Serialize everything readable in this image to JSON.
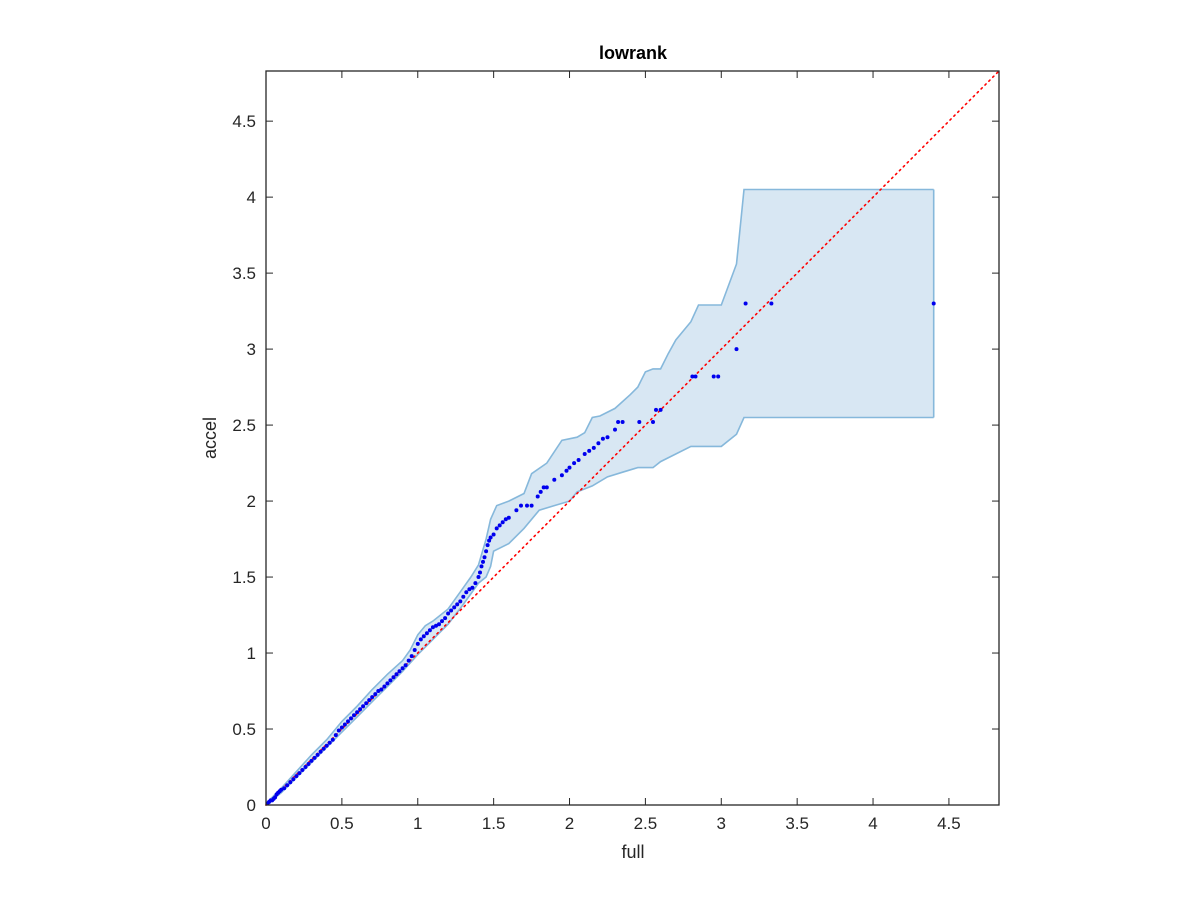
{
  "chart_data": {
    "type": "scatter",
    "title": "lowrank",
    "xlabel": "full",
    "ylabel": "accel",
    "xlim": [
      0,
      4.83
    ],
    "ylim": [
      0,
      4.83
    ],
    "xticks": [
      0,
      0.5,
      1,
      1.5,
      2,
      2.5,
      3,
      3.5,
      4,
      4.5
    ],
    "yticks": [
      0,
      0.5,
      1,
      1.5,
      2,
      2.5,
      3,
      3.5,
      4,
      4.5
    ],
    "xtick_labels": [
      "0",
      "0.5",
      "1",
      "1.5",
      "2",
      "2.5",
      "3",
      "3.5",
      "4",
      "4.5"
    ],
    "ytick_labels": [
      "0",
      "0.5",
      "1",
      "1.5",
      "2",
      "2.5",
      "3",
      "3.5",
      "4",
      "4.5"
    ],
    "grid": false,
    "colors": {
      "points": "#0000ee",
      "band_fill": "#d8e7f3",
      "band_edge": "#86b8db",
      "reference_line": "#ff0000",
      "axis": "#262626"
    },
    "reference_line": {
      "style": "dotted",
      "x": [
        0,
        4.83
      ],
      "y": [
        0,
        4.83
      ]
    },
    "band": {
      "upper": [
        [
          0,
          0.01
        ],
        [
          0.1,
          0.11
        ],
        [
          0.2,
          0.22
        ],
        [
          0.3,
          0.33
        ],
        [
          0.4,
          0.43
        ],
        [
          0.5,
          0.55
        ],
        [
          0.6,
          0.65
        ],
        [
          0.7,
          0.76
        ],
        [
          0.8,
          0.86
        ],
        [
          0.9,
          0.95
        ],
        [
          0.95,
          1.02
        ],
        [
          1.0,
          1.12
        ],
        [
          1.05,
          1.18
        ],
        [
          1.1,
          1.21
        ],
        [
          1.2,
          1.29
        ],
        [
          1.3,
          1.43
        ],
        [
          1.35,
          1.5
        ],
        [
          1.4,
          1.58
        ],
        [
          1.45,
          1.75
        ],
        [
          1.48,
          1.88
        ],
        [
          1.52,
          1.97
        ],
        [
          1.6,
          2.0
        ],
        [
          1.7,
          2.05
        ],
        [
          1.75,
          2.18
        ],
        [
          1.85,
          2.25
        ],
        [
          1.95,
          2.4
        ],
        [
          2.05,
          2.42
        ],
        [
          2.1,
          2.45
        ],
        [
          2.15,
          2.55
        ],
        [
          2.2,
          2.56
        ],
        [
          2.3,
          2.61
        ],
        [
          2.4,
          2.7
        ],
        [
          2.45,
          2.75
        ],
        [
          2.5,
          2.85
        ],
        [
          2.55,
          2.87
        ],
        [
          2.6,
          2.87
        ],
        [
          2.65,
          2.97
        ],
        [
          2.7,
          3.06
        ],
        [
          2.8,
          3.18
        ],
        [
          2.85,
          3.29
        ],
        [
          3.0,
          3.29
        ],
        [
          3.1,
          3.56
        ],
        [
          3.15,
          4.05
        ],
        [
          4.4,
          4.05
        ]
      ],
      "lower": [
        [
          0,
          0
        ],
        [
          0.1,
          0.08
        ],
        [
          0.2,
          0.18
        ],
        [
          0.3,
          0.28
        ],
        [
          0.4,
          0.38
        ],
        [
          0.5,
          0.48
        ],
        [
          0.6,
          0.58
        ],
        [
          0.7,
          0.68
        ],
        [
          0.8,
          0.78
        ],
        [
          0.9,
          0.88
        ],
        [
          1.0,
          0.99
        ],
        [
          1.1,
          1.09
        ],
        [
          1.2,
          1.19
        ],
        [
          1.3,
          1.32
        ],
        [
          1.4,
          1.46
        ],
        [
          1.45,
          1.5
        ],
        [
          1.48,
          1.57
        ],
        [
          1.5,
          1.67
        ],
        [
          1.6,
          1.72
        ],
        [
          1.7,
          1.82
        ],
        [
          1.8,
          1.94
        ],
        [
          1.9,
          1.97
        ],
        [
          2.0,
          2.0
        ],
        [
          2.05,
          2.06
        ],
        [
          2.15,
          2.1
        ],
        [
          2.25,
          2.16
        ],
        [
          2.35,
          2.19
        ],
        [
          2.45,
          2.22
        ],
        [
          2.55,
          2.22
        ],
        [
          2.6,
          2.26
        ],
        [
          2.8,
          2.36
        ],
        [
          3.0,
          2.36
        ],
        [
          3.1,
          2.44
        ],
        [
          3.15,
          2.55
        ],
        [
          4.4,
          2.55
        ]
      ]
    },
    "points": [
      [
        0.01,
        0.01
      ],
      [
        0.02,
        0.02
      ],
      [
        0.03,
        0.03
      ],
      [
        0.04,
        0.03
      ],
      [
        0.05,
        0.04
      ],
      [
        0.06,
        0.05
      ],
      [
        0.07,
        0.07
      ],
      [
        0.08,
        0.08
      ],
      [
        0.09,
        0.09
      ],
      [
        0.1,
        0.1
      ],
      [
        0.12,
        0.11
      ],
      [
        0.14,
        0.13
      ],
      [
        0.16,
        0.15
      ],
      [
        0.18,
        0.17
      ],
      [
        0.2,
        0.19
      ],
      [
        0.22,
        0.21
      ],
      [
        0.24,
        0.23
      ],
      [
        0.26,
        0.25
      ],
      [
        0.28,
        0.27
      ],
      [
        0.3,
        0.29
      ],
      [
        0.32,
        0.31
      ],
      [
        0.34,
        0.33
      ],
      [
        0.36,
        0.35
      ],
      [
        0.38,
        0.37
      ],
      [
        0.4,
        0.39
      ],
      [
        0.42,
        0.41
      ],
      [
        0.44,
        0.43
      ],
      [
        0.46,
        0.46
      ],
      [
        0.48,
        0.49
      ],
      [
        0.5,
        0.51
      ],
      [
        0.52,
        0.53
      ],
      [
        0.54,
        0.55
      ],
      [
        0.56,
        0.57
      ],
      [
        0.58,
        0.59
      ],
      [
        0.6,
        0.61
      ],
      [
        0.62,
        0.63
      ],
      [
        0.64,
        0.65
      ],
      [
        0.66,
        0.67
      ],
      [
        0.68,
        0.69
      ],
      [
        0.7,
        0.71
      ],
      [
        0.72,
        0.73
      ],
      [
        0.74,
        0.75
      ],
      [
        0.76,
        0.76
      ],
      [
        0.78,
        0.78
      ],
      [
        0.8,
        0.8
      ],
      [
        0.82,
        0.82
      ],
      [
        0.84,
        0.84
      ],
      [
        0.86,
        0.86
      ],
      [
        0.88,
        0.88
      ],
      [
        0.9,
        0.9
      ],
      [
        0.92,
        0.92
      ],
      [
        0.94,
        0.95
      ],
      [
        0.96,
        0.98
      ],
      [
        0.98,
        1.02
      ],
      [
        1.0,
        1.06
      ],
      [
        1.02,
        1.09
      ],
      [
        1.04,
        1.11
      ],
      [
        1.06,
        1.13
      ],
      [
        1.08,
        1.15
      ],
      [
        1.1,
        1.17
      ],
      [
        1.12,
        1.18
      ],
      [
        1.14,
        1.19
      ],
      [
        1.16,
        1.21
      ],
      [
        1.18,
        1.23
      ],
      [
        1.2,
        1.26
      ],
      [
        1.22,
        1.28
      ],
      [
        1.24,
        1.3
      ],
      [
        1.26,
        1.32
      ],
      [
        1.28,
        1.34
      ],
      [
        1.3,
        1.37
      ],
      [
        1.32,
        1.4
      ],
      [
        1.34,
        1.42
      ],
      [
        1.36,
        1.43
      ],
      [
        1.38,
        1.46
      ],
      [
        1.4,
        1.5
      ],
      [
        1.41,
        1.53
      ],
      [
        1.42,
        1.57
      ],
      [
        1.43,
        1.6
      ],
      [
        1.44,
        1.63
      ],
      [
        1.45,
        1.67
      ],
      [
        1.46,
        1.71
      ],
      [
        1.47,
        1.74
      ],
      [
        1.48,
        1.76
      ],
      [
        1.5,
        1.78
      ],
      [
        1.52,
        1.82
      ],
      [
        1.54,
        1.84
      ],
      [
        1.56,
        1.86
      ],
      [
        1.58,
        1.88
      ],
      [
        1.6,
        1.89
      ],
      [
        1.65,
        1.94
      ],
      [
        1.68,
        1.97
      ],
      [
        1.72,
        1.97
      ],
      [
        1.75,
        1.97
      ],
      [
        1.79,
        2.03
      ],
      [
        1.81,
        2.06
      ],
      [
        1.83,
        2.09
      ],
      [
        1.85,
        2.09
      ],
      [
        1.9,
        2.14
      ],
      [
        1.95,
        2.17
      ],
      [
        1.98,
        2.2
      ],
      [
        2.0,
        2.22
      ],
      [
        2.03,
        2.25
      ],
      [
        2.06,
        2.27
      ],
      [
        2.1,
        2.31
      ],
      [
        2.13,
        2.33
      ],
      [
        2.16,
        2.35
      ],
      [
        2.19,
        2.38
      ],
      [
        2.22,
        2.41
      ],
      [
        2.25,
        2.42
      ],
      [
        2.3,
        2.47
      ],
      [
        2.32,
        2.52
      ],
      [
        2.35,
        2.52
      ],
      [
        2.46,
        2.52
      ],
      [
        2.55,
        2.52
      ],
      [
        2.57,
        2.6
      ],
      [
        2.6,
        2.6
      ],
      [
        2.81,
        2.82
      ],
      [
        2.83,
        2.82
      ],
      [
        2.95,
        2.82
      ],
      [
        2.98,
        2.82
      ],
      [
        3.1,
        3.0
      ],
      [
        3.16,
        3.3
      ],
      [
        3.33,
        3.3
      ],
      [
        4.4,
        3.3
      ]
    ]
  }
}
